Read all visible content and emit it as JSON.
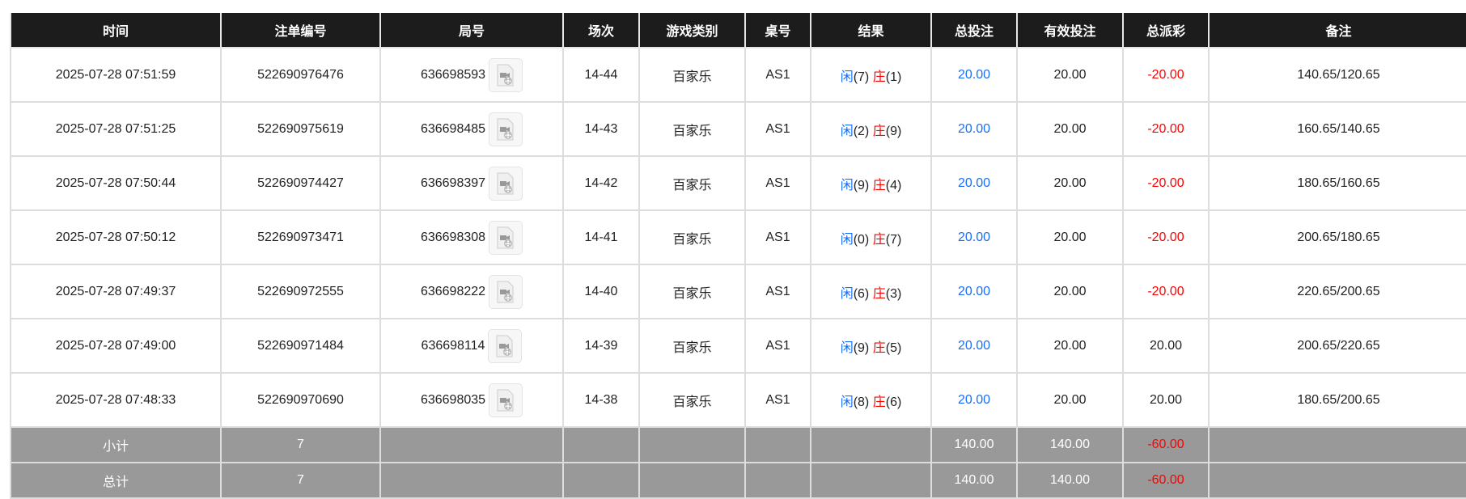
{
  "headers": [
    "时间",
    "注单编号",
    "局号",
    "场次",
    "游戏类别",
    "桌号",
    "结果",
    "总投注",
    "有效投注",
    "总派彩",
    "备注"
  ],
  "rows": [
    {
      "time": "2025-07-28 07:51:59",
      "bet_id": "522690976476",
      "round": "636698593",
      "session": "14-44",
      "game": "百家乐",
      "table": "AS1",
      "player_label": "闲",
      "player": "(7)",
      "banker_label": "庄",
      "banker": "(1)",
      "total_bet": "20.00",
      "valid_bet": "20.00",
      "payout": "-20.00",
      "payout_negative": true,
      "note": "140.65/120.65"
    },
    {
      "time": "2025-07-28 07:51:25",
      "bet_id": "522690975619",
      "round": "636698485",
      "session": "14-43",
      "game": "百家乐",
      "table": "AS1",
      "player_label": "闲",
      "player": "(2)",
      "banker_label": "庄",
      "banker": "(9)",
      "total_bet": "20.00",
      "valid_bet": "20.00",
      "payout": "-20.00",
      "payout_negative": true,
      "note": "160.65/140.65"
    },
    {
      "time": "2025-07-28 07:50:44",
      "bet_id": "522690974427",
      "round": "636698397",
      "session": "14-42",
      "game": "百家乐",
      "table": "AS1",
      "player_label": "闲",
      "player": "(9)",
      "banker_label": "庄",
      "banker": "(4)",
      "total_bet": "20.00",
      "valid_bet": "20.00",
      "payout": "-20.00",
      "payout_negative": true,
      "note": "180.65/160.65"
    },
    {
      "time": "2025-07-28 07:50:12",
      "bet_id": "522690973471",
      "round": "636698308",
      "session": "14-41",
      "game": "百家乐",
      "table": "AS1",
      "player_label": "闲",
      "player": "(0)",
      "banker_label": "庄",
      "banker": "(7)",
      "total_bet": "20.00",
      "valid_bet": "20.00",
      "payout": "-20.00",
      "payout_negative": true,
      "note": "200.65/180.65"
    },
    {
      "time": "2025-07-28 07:49:37",
      "bet_id": "522690972555",
      "round": "636698222",
      "session": "14-40",
      "game": "百家乐",
      "table": "AS1",
      "player_label": "闲",
      "player": "(6)",
      "banker_label": "庄",
      "banker": "(3)",
      "total_bet": "20.00",
      "valid_bet": "20.00",
      "payout": "-20.00",
      "payout_negative": true,
      "note": "220.65/200.65"
    },
    {
      "time": "2025-07-28 07:49:00",
      "bet_id": "522690971484",
      "round": "636698114",
      "session": "14-39",
      "game": "百家乐",
      "table": "AS1",
      "player_label": "闲",
      "player": "(9)",
      "banker_label": "庄",
      "banker": "(5)",
      "total_bet": "20.00",
      "valid_bet": "20.00",
      "payout": "20.00",
      "payout_negative": false,
      "note": "200.65/220.65"
    },
    {
      "time": "2025-07-28 07:48:33",
      "bet_id": "522690970690",
      "round": "636698035",
      "session": "14-38",
      "game": "百家乐",
      "table": "AS1",
      "player_label": "闲",
      "player": "(8)",
      "banker_label": "庄",
      "banker": "(6)",
      "total_bet": "20.00",
      "valid_bet": "20.00",
      "payout": "20.00",
      "payout_negative": false,
      "note": "180.65/200.65"
    }
  ],
  "summary": [
    {
      "label": "小计",
      "count": "7",
      "total_bet": "140.00",
      "valid_bet": "140.00",
      "payout": "-60.00"
    },
    {
      "label": "总计",
      "count": "7",
      "total_bet": "140.00",
      "valid_bet": "140.00",
      "payout": "-60.00"
    }
  ],
  "colors": {
    "header_bg": "#1c1c1c",
    "summary_bg": "#999999",
    "player": "#1a6ef5",
    "banker": "#ff0000",
    "negative": "#ff0000"
  },
  "icons": {
    "round_video": "video-file-icon"
  }
}
